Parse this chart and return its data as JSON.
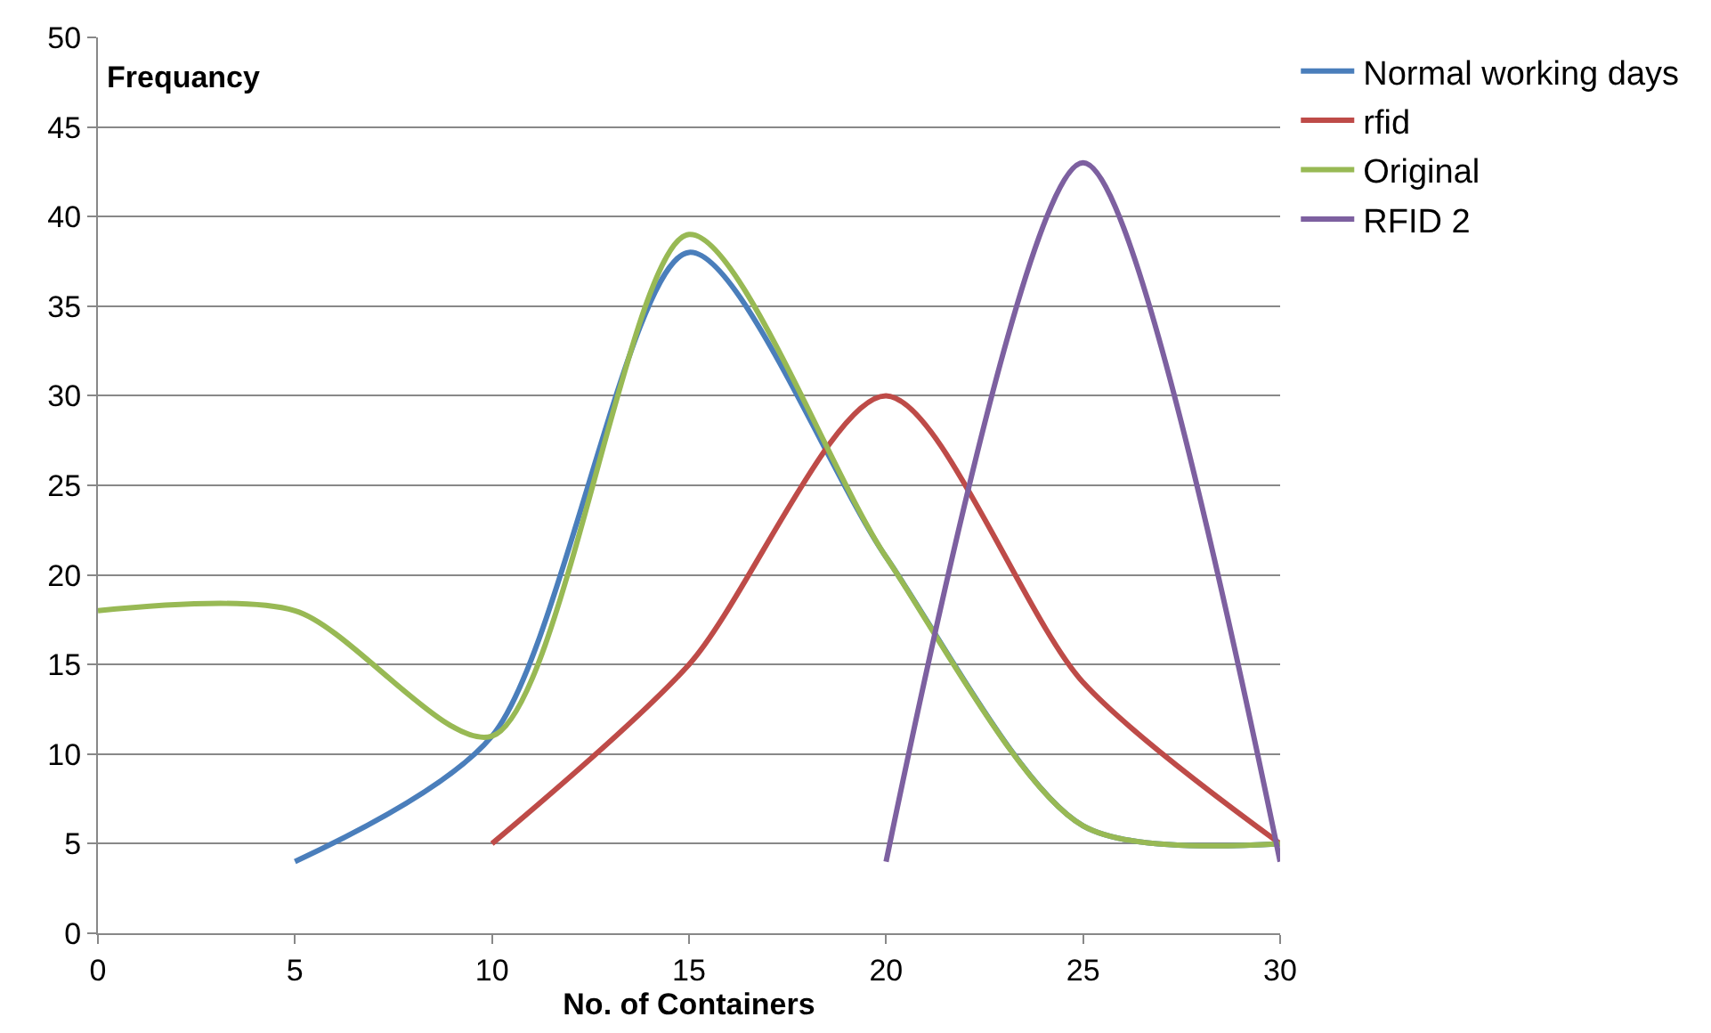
{
  "chart_data": {
    "type": "line",
    "xlabel": "No. of Containers",
    "ylabel": "Frequancy",
    "xlim": [
      0,
      30
    ],
    "xticks": [
      0,
      5,
      10,
      15,
      20,
      25,
      30
    ],
    "ylim": [
      0,
      50
    ],
    "yticks": [
      0,
      5,
      10,
      15,
      20,
      25,
      30,
      35,
      40,
      45,
      50
    ],
    "grid": "y",
    "legend": "right",
    "marker": "none",
    "line_style": "solid",
    "series": [
      {
        "name": "Normal working days",
        "color": "#4a7ebb",
        "x": [
          5,
          10,
          15,
          20,
          25,
          30
        ],
        "values": [
          4,
          11,
          38,
          21,
          6,
          5
        ]
      },
      {
        "name": "rfid",
        "color": "#be4b48",
        "x": [
          10,
          15,
          20,
          25,
          30
        ],
        "values": [
          5,
          15,
          30,
          14,
          5
        ]
      },
      {
        "name": "Original",
        "color": "#98b954",
        "x": [
          0,
          5,
          10,
          15,
          20,
          25,
          30
        ],
        "values": [
          18,
          18,
          11,
          39,
          21,
          6,
          5
        ]
      },
      {
        "name": "RFID 2",
        "color": "#7d60a0",
        "x": [
          20,
          25,
          30
        ],
        "values": [
          4,
          43,
          4
        ]
      }
    ]
  }
}
